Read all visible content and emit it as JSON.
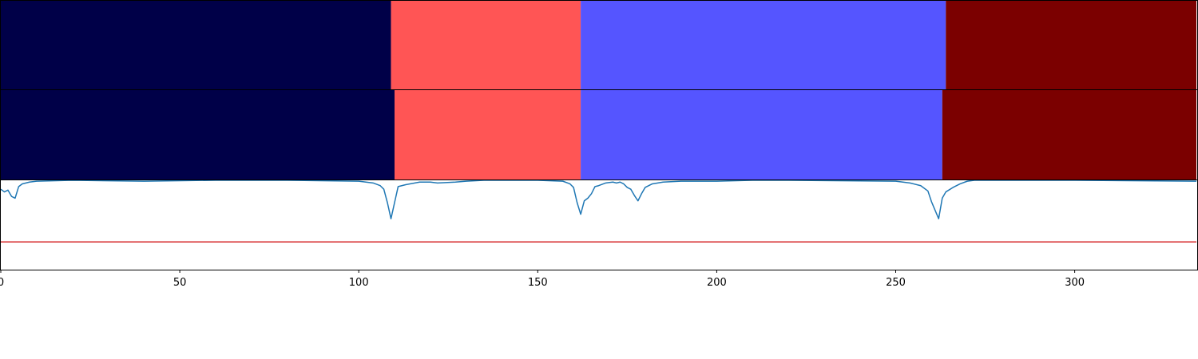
{
  "chart_data": [
    {
      "type": "segmentation-bar",
      "name": "top-strip",
      "segments": [
        {
          "start": 0,
          "end": 109,
          "color": "#000048"
        },
        {
          "start": 109,
          "end": 162,
          "color": "#ff5555"
        },
        {
          "start": 162,
          "end": 264,
          "color": "#5555ff"
        },
        {
          "start": 264,
          "end": 334,
          "color": "#7b0000"
        }
      ]
    },
    {
      "type": "segmentation-bar",
      "name": "middle-strip",
      "segments": [
        {
          "start": 0,
          "end": 110,
          "color": "#000048"
        },
        {
          "start": 110,
          "end": 162,
          "color": "#ff5555"
        },
        {
          "start": 162,
          "end": 263,
          "color": "#5555ff"
        },
        {
          "start": 263,
          "end": 334,
          "color": "#7b0000"
        }
      ]
    },
    {
      "type": "line",
      "name": "confidence-plot",
      "xlim": [
        0,
        334
      ],
      "ylim": [
        0,
        1
      ],
      "threshold": {
        "value": 0.31,
        "color": "#d62728"
      },
      "line_color": "#1f77b4",
      "xticks": [
        0,
        50,
        100,
        150,
        200,
        250,
        300
      ],
      "xtick_labels": [
        "0",
        "50",
        "100",
        "150",
        "200",
        "250",
        "300"
      ],
      "series": [
        {
          "name": "score",
          "points": [
            [
              0,
              0.9
            ],
            [
              1,
              0.87
            ],
            [
              2,
              0.89
            ],
            [
              3,
              0.82
            ],
            [
              4,
              0.8
            ],
            [
              5,
              0.93
            ],
            [
              6,
              0.96
            ],
            [
              8,
              0.98
            ],
            [
              10,
              0.99
            ],
            [
              20,
              1.0
            ],
            [
              40,
              0.99
            ],
            [
              60,
              1.0
            ],
            [
              80,
              1.0
            ],
            [
              100,
              0.99
            ],
            [
              104,
              0.97
            ],
            [
              106,
              0.94
            ],
            [
              107,
              0.9
            ],
            [
              108,
              0.75
            ],
            [
              109,
              0.57
            ],
            [
              110,
              0.75
            ],
            [
              111,
              0.93
            ],
            [
              113,
              0.95
            ],
            [
              117,
              0.98
            ],
            [
              120,
              0.98
            ],
            [
              122,
              0.97
            ],
            [
              127,
              0.98
            ],
            [
              130,
              0.99
            ],
            [
              135,
              1.0
            ],
            [
              150,
              1.0
            ],
            [
              157,
              0.99
            ],
            [
              159,
              0.96
            ],
            [
              160,
              0.92
            ],
            [
              161,
              0.75
            ],
            [
              162,
              0.62
            ],
            [
              163,
              0.77
            ],
            [
              164,
              0.8
            ],
            [
              165,
              0.85
            ],
            [
              166,
              0.93
            ],
            [
              167,
              0.94
            ],
            [
              169,
              0.97
            ],
            [
              171,
              0.98
            ],
            [
              172,
              0.97
            ],
            [
              173,
              0.98
            ],
            [
              174,
              0.96
            ],
            [
              175,
              0.92
            ],
            [
              176,
              0.9
            ],
            [
              177,
              0.83
            ],
            [
              178,
              0.77
            ],
            [
              179,
              0.85
            ],
            [
              180,
              0.92
            ],
            [
              182,
              0.96
            ],
            [
              185,
              0.98
            ],
            [
              190,
              0.99
            ],
            [
              200,
              0.99
            ],
            [
              210,
              1.0
            ],
            [
              220,
              1.0
            ],
            [
              250,
              0.99
            ],
            [
              254,
              0.97
            ],
            [
              257,
              0.94
            ],
            [
              259,
              0.88
            ],
            [
              260,
              0.76
            ],
            [
              262,
              0.57
            ],
            [
              263,
              0.8
            ],
            [
              264,
              0.87
            ],
            [
              266,
              0.92
            ],
            [
              268,
              0.96
            ],
            [
              270,
              0.99
            ],
            [
              272,
              1.0
            ],
            [
              300,
              1.0
            ],
            [
              334,
              0.99
            ]
          ]
        }
      ]
    }
  ]
}
